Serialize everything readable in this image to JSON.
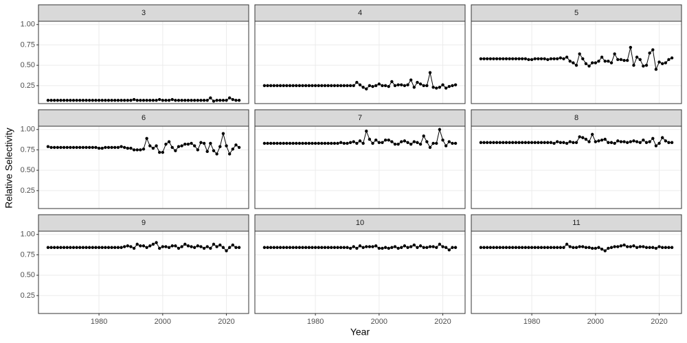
{
  "chart_data": {
    "type": "line",
    "x_label": "Year",
    "y_label": "Relative Selectivity",
    "color": "#000000",
    "grid": true,
    "xlim": [
      1961,
      2027
    ],
    "xticks": [
      1980,
      2000,
      2020
    ],
    "ylim": [
      0.03,
      1.04
    ],
    "yticks": [
      0.25,
      {
        "value": 0.5,
        "label": "0.50"
      },
      0.75,
      {
        "value": 1,
        "label": "1.00"
      }
    ],
    "x": [
      1964,
      1965,
      1966,
      1967,
      1968,
      1969,
      1970,
      1971,
      1972,
      1973,
      1974,
      1975,
      1976,
      1977,
      1978,
      1979,
      1980,
      1981,
      1982,
      1983,
      1984,
      1985,
      1986,
      1987,
      1988,
      1989,
      1990,
      1991,
      1992,
      1993,
      1994,
      1995,
      1996,
      1997,
      1998,
      1999,
      2000,
      2001,
      2002,
      2003,
      2004,
      2005,
      2006,
      2007,
      2008,
      2009,
      2010,
      2011,
      2012,
      2013,
      2014,
      2015,
      2016,
      2017,
      2018,
      2019,
      2020,
      2021,
      2022,
      2023,
      2024
    ],
    "series": [
      {
        "name": "3",
        "values": [
          0.07,
          0.07,
          0.07,
          0.07,
          0.07,
          0.07,
          0.07,
          0.07,
          0.07,
          0.07,
          0.07,
          0.07,
          0.07,
          0.07,
          0.07,
          0.07,
          0.07,
          0.07,
          0.07,
          0.07,
          0.07,
          0.07,
          0.07,
          0.07,
          0.07,
          0.07,
          0.07,
          0.08,
          0.07,
          0.07,
          0.07,
          0.07,
          0.07,
          0.07,
          0.07,
          0.08,
          0.07,
          0.07,
          0.07,
          0.08,
          0.07,
          0.07,
          0.07,
          0.07,
          0.07,
          0.07,
          0.07,
          0.07,
          0.07,
          0.07,
          0.07,
          0.1,
          0.06,
          0.07,
          0.07,
          0.07,
          0.07,
          0.1,
          0.08,
          0.07,
          0.07
        ]
      },
      {
        "name": "4",
        "values": [
          0.25,
          0.25,
          0.25,
          0.25,
          0.25,
          0.25,
          0.25,
          0.25,
          0.25,
          0.25,
          0.25,
          0.25,
          0.25,
          0.25,
          0.25,
          0.25,
          0.25,
          0.25,
          0.25,
          0.25,
          0.25,
          0.25,
          0.25,
          0.25,
          0.25,
          0.25,
          0.25,
          0.25,
          0.25,
          0.29,
          0.26,
          0.23,
          0.21,
          0.25,
          0.24,
          0.25,
          0.27,
          0.25,
          0.25,
          0.24,
          0.3,
          0.25,
          0.26,
          0.26,
          0.25,
          0.26,
          0.32,
          0.23,
          0.29,
          0.27,
          0.25,
          0.25,
          0.41,
          0.23,
          0.22,
          0.23,
          0.26,
          0.22,
          0.24,
          0.25,
          0.26
        ]
      },
      {
        "name": "5",
        "values": [
          0.58,
          0.58,
          0.58,
          0.58,
          0.58,
          0.58,
          0.58,
          0.58,
          0.58,
          0.58,
          0.58,
          0.58,
          0.58,
          0.58,
          0.58,
          0.57,
          0.57,
          0.58,
          0.58,
          0.58,
          0.58,
          0.57,
          0.58,
          0.58,
          0.58,
          0.59,
          0.58,
          0.6,
          0.55,
          0.53,
          0.5,
          0.64,
          0.58,
          0.52,
          0.49,
          0.53,
          0.53,
          0.55,
          0.6,
          0.55,
          0.55,
          0.53,
          0.64,
          0.57,
          0.57,
          0.56,
          0.56,
          0.72,
          0.5,
          0.6,
          0.57,
          0.49,
          0.5,
          0.65,
          0.69,
          0.45,
          0.54,
          0.52,
          0.53,
          0.57,
          0.59
        ]
      },
      {
        "name": "6",
        "values": [
          0.79,
          0.78,
          0.78,
          0.78,
          0.78,
          0.78,
          0.78,
          0.78,
          0.78,
          0.78,
          0.78,
          0.78,
          0.78,
          0.78,
          0.78,
          0.78,
          0.77,
          0.77,
          0.78,
          0.78,
          0.78,
          0.78,
          0.78,
          0.79,
          0.78,
          0.77,
          0.77,
          0.75,
          0.75,
          0.75,
          0.76,
          0.89,
          0.8,
          0.77,
          0.8,
          0.72,
          0.72,
          0.82,
          0.85,
          0.78,
          0.74,
          0.79,
          0.8,
          0.82,
          0.82,
          0.83,
          0.8,
          0.75,
          0.84,
          0.83,
          0.73,
          0.83,
          0.74,
          0.7,
          0.79,
          0.95,
          0.8,
          0.7,
          0.76,
          0.81,
          0.78
        ]
      },
      {
        "name": "7",
        "values": [
          0.83,
          0.83,
          0.83,
          0.83,
          0.83,
          0.83,
          0.83,
          0.83,
          0.83,
          0.83,
          0.83,
          0.83,
          0.83,
          0.83,
          0.83,
          0.83,
          0.83,
          0.83,
          0.83,
          0.83,
          0.83,
          0.83,
          0.83,
          0.83,
          0.84,
          0.83,
          0.83,
          0.84,
          0.85,
          0.83,
          0.86,
          0.83,
          0.98,
          0.88,
          0.83,
          0.87,
          0.84,
          0.84,
          0.87,
          0.87,
          0.85,
          0.82,
          0.82,
          0.85,
          0.86,
          0.84,
          0.82,
          0.85,
          0.84,
          0.82,
          0.92,
          0.85,
          0.78,
          0.83,
          0.83,
          1.0,
          0.87,
          0.8,
          0.85,
          0.83,
          0.83
        ]
      },
      {
        "name": "8",
        "values": [
          0.84,
          0.84,
          0.84,
          0.84,
          0.84,
          0.84,
          0.84,
          0.84,
          0.84,
          0.84,
          0.84,
          0.84,
          0.84,
          0.84,
          0.84,
          0.84,
          0.84,
          0.84,
          0.84,
          0.84,
          0.84,
          0.84,
          0.84,
          0.83,
          0.85,
          0.84,
          0.84,
          0.83,
          0.85,
          0.84,
          0.84,
          0.91,
          0.9,
          0.88,
          0.85,
          0.94,
          0.85,
          0.86,
          0.87,
          0.88,
          0.84,
          0.84,
          0.83,
          0.86,
          0.85,
          0.85,
          0.84,
          0.85,
          0.86,
          0.85,
          0.84,
          0.87,
          0.84,
          0.85,
          0.89,
          0.8,
          0.83,
          0.9,
          0.86,
          0.84,
          0.84
        ]
      },
      {
        "name": "9",
        "values": [
          0.84,
          0.84,
          0.84,
          0.84,
          0.84,
          0.84,
          0.84,
          0.84,
          0.84,
          0.84,
          0.84,
          0.84,
          0.84,
          0.84,
          0.84,
          0.84,
          0.84,
          0.84,
          0.84,
          0.84,
          0.84,
          0.84,
          0.84,
          0.84,
          0.85,
          0.86,
          0.85,
          0.83,
          0.88,
          0.86,
          0.86,
          0.84,
          0.86,
          0.88,
          0.9,
          0.83,
          0.85,
          0.85,
          0.84,
          0.86,
          0.86,
          0.83,
          0.85,
          0.88,
          0.86,
          0.85,
          0.84,
          0.86,
          0.85,
          0.83,
          0.85,
          0.83,
          0.88,
          0.85,
          0.87,
          0.84,
          0.8,
          0.84,
          0.87,
          0.84,
          0.84
        ]
      },
      {
        "name": "10",
        "values": [
          0.84,
          0.84,
          0.84,
          0.84,
          0.84,
          0.84,
          0.84,
          0.84,
          0.84,
          0.84,
          0.84,
          0.84,
          0.84,
          0.84,
          0.84,
          0.84,
          0.84,
          0.84,
          0.84,
          0.84,
          0.84,
          0.84,
          0.84,
          0.84,
          0.84,
          0.84,
          0.84,
          0.83,
          0.85,
          0.83,
          0.86,
          0.84,
          0.85,
          0.85,
          0.85,
          0.86,
          0.83,
          0.83,
          0.84,
          0.83,
          0.84,
          0.85,
          0.83,
          0.84,
          0.86,
          0.84,
          0.85,
          0.87,
          0.84,
          0.86,
          0.84,
          0.84,
          0.85,
          0.85,
          0.84,
          0.88,
          0.85,
          0.84,
          0.81,
          0.84,
          0.84
        ]
      },
      {
        "name": "11",
        "values": [
          0.84,
          0.84,
          0.84,
          0.84,
          0.84,
          0.84,
          0.84,
          0.84,
          0.84,
          0.84,
          0.84,
          0.84,
          0.84,
          0.84,
          0.84,
          0.84,
          0.84,
          0.84,
          0.84,
          0.84,
          0.84,
          0.84,
          0.84,
          0.84,
          0.84,
          0.84,
          0.84,
          0.88,
          0.85,
          0.84,
          0.84,
          0.85,
          0.85,
          0.84,
          0.84,
          0.83,
          0.83,
          0.84,
          0.82,
          0.8,
          0.83,
          0.84,
          0.85,
          0.85,
          0.86,
          0.87,
          0.85,
          0.85,
          0.86,
          0.84,
          0.85,
          0.85,
          0.84,
          0.84,
          0.84,
          0.83,
          0.85,
          0.84,
          0.84,
          0.84,
          0.84
        ]
      }
    ]
  }
}
